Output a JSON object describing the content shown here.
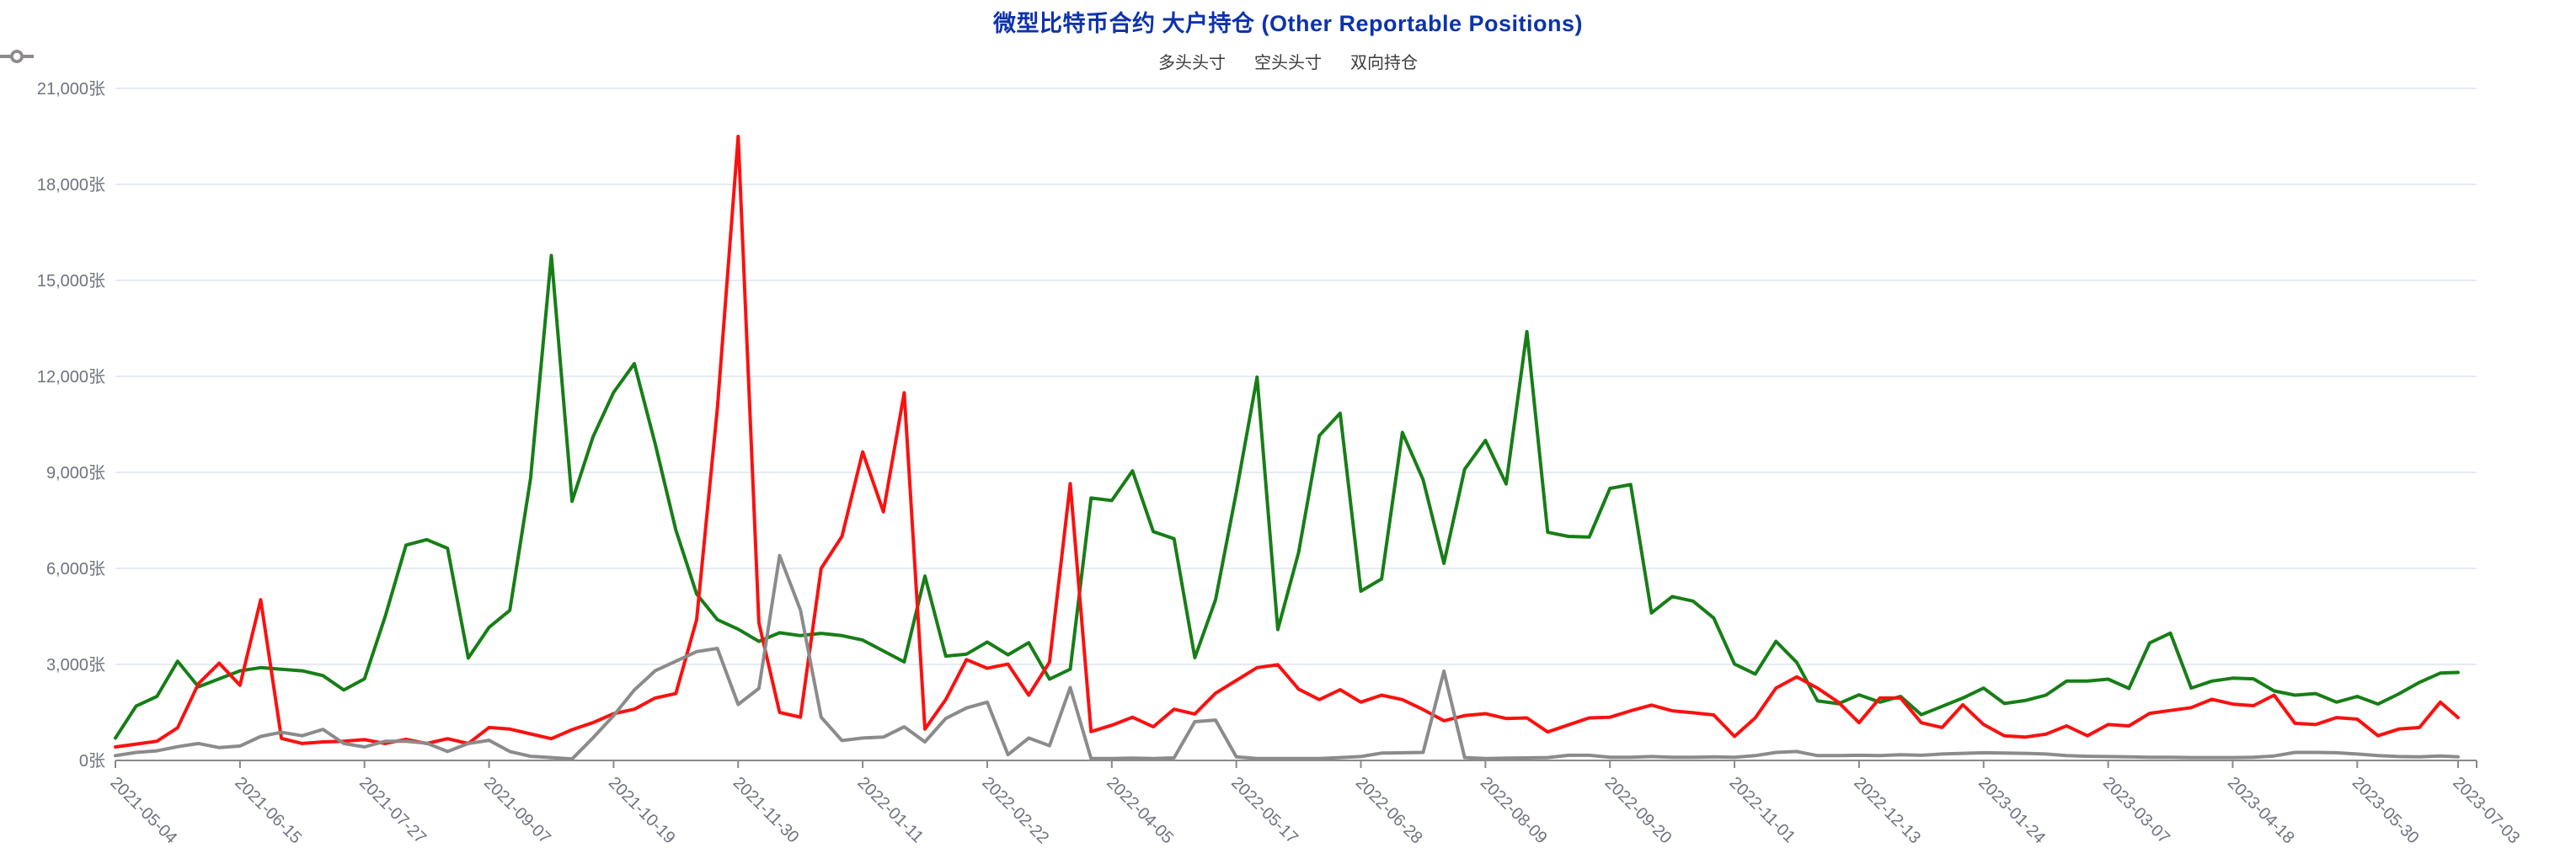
{
  "header": {
    "title": "微型比特币合约 大户持仓 (Other Reportable Positions)",
    "title_color": "#0d33ab"
  },
  "chart_data": {
    "type": "line",
    "title": "微型比特币合约 大户持仓 (Other Reportable Positions)",
    "unit": "张",
    "grid": true,
    "legend_position": "top",
    "ylim": [
      0,
      21000
    ],
    "ytick_step": 3000,
    "y_tick_labels": [
      "0张",
      "3,000张",
      "6,000张",
      "9,000张",
      "12,000张",
      "15,000张",
      "18,000张",
      "21,000张"
    ],
    "x_tick_indices": [
      0,
      6,
      12,
      18,
      24,
      30,
      36,
      42,
      48,
      54,
      60,
      66,
      72,
      78,
      84,
      90,
      96,
      102,
      108,
      113
    ],
    "x": [
      "2021-05-04",
      "2021-05-11",
      "2021-05-18",
      "2021-05-25",
      "2021-06-01",
      "2021-06-08",
      "2021-06-15",
      "2021-06-22",
      "2021-06-29",
      "2021-07-06",
      "2021-07-13",
      "2021-07-20",
      "2021-07-27",
      "2021-08-03",
      "2021-08-10",
      "2021-08-17",
      "2021-08-24",
      "2021-08-31",
      "2021-09-07",
      "2021-09-14",
      "2021-09-21",
      "2021-09-28",
      "2021-10-05",
      "2021-10-12",
      "2021-10-19",
      "2021-10-26",
      "2021-11-02",
      "2021-11-09",
      "2021-11-16",
      "2021-11-23",
      "2021-11-30",
      "2021-12-07",
      "2021-12-14",
      "2021-12-21",
      "2021-12-28",
      "2022-01-04",
      "2022-01-11",
      "2022-01-18",
      "2022-01-25",
      "2022-02-01",
      "2022-02-08",
      "2022-02-15",
      "2022-02-22",
      "2022-03-01",
      "2022-03-08",
      "2022-03-15",
      "2022-03-22",
      "2022-03-29",
      "2022-04-05",
      "2022-04-12",
      "2022-04-19",
      "2022-04-26",
      "2022-05-03",
      "2022-05-10",
      "2022-05-17",
      "2022-05-24",
      "2022-05-31",
      "2022-06-07",
      "2022-06-14",
      "2022-06-21",
      "2022-06-28",
      "2022-07-05",
      "2022-07-12",
      "2022-07-19",
      "2022-07-26",
      "2022-08-02",
      "2022-08-09",
      "2022-08-16",
      "2022-08-23",
      "2022-08-30",
      "2022-09-06",
      "2022-09-13",
      "2022-09-20",
      "2022-09-27",
      "2022-10-04",
      "2022-10-11",
      "2022-10-18",
      "2022-10-25",
      "2022-11-01",
      "2022-11-08",
      "2022-11-15",
      "2022-11-22",
      "2022-11-29",
      "2022-12-06",
      "2022-12-13",
      "2022-12-20",
      "2022-12-27",
      "2023-01-03",
      "2023-01-10",
      "2023-01-17",
      "2023-01-24",
      "2023-01-31",
      "2023-02-07",
      "2023-02-14",
      "2023-02-21",
      "2023-02-28",
      "2023-03-07",
      "2023-03-14",
      "2023-03-21",
      "2023-03-28",
      "2023-04-04",
      "2023-04-11",
      "2023-04-18",
      "2023-04-25",
      "2023-05-02",
      "2023-05-09",
      "2023-05-16",
      "2023-05-23",
      "2023-05-30",
      "2023-06-06",
      "2023-06-13",
      "2023-06-20",
      "2023-06-27",
      "2023-07-03"
    ],
    "series": [
      {
        "name": "多头头寸",
        "color": "#177e17",
        "values": [
          700,
          1700,
          2000,
          3100,
          2300,
          2550,
          2800,
          2900,
          2850,
          2800,
          2650,
          2200,
          2550,
          4500,
          6730,
          6900,
          6630,
          3200,
          4160,
          4690,
          8800,
          15780,
          8100,
          10100,
          11500,
          12400,
          9900,
          7200,
          5200,
          4400,
          4100,
          3720,
          3990,
          3900,
          3970,
          3900,
          3760,
          3420,
          3080,
          5760,
          3260,
          3320,
          3700,
          3300,
          3680,
          2540,
          2850,
          8200,
          8120,
          9050,
          7150,
          6930,
          3210,
          5020,
          8390,
          11980,
          4090,
          6500,
          10150,
          10850,
          5290,
          5670,
          10250,
          8770,
          6160,
          9100,
          10000,
          8640,
          13400,
          7130,
          7000,
          6980,
          8500,
          8620,
          4610,
          5120,
          4980,
          4450,
          3010,
          2700,
          3720,
          3060,
          1860,
          1770,
          2050,
          1820,
          2000,
          1430,
          1690,
          1950,
          2260,
          1780,
          1870,
          2040,
          2480,
          2480,
          2540,
          2250,
          3670,
          3980,
          2260,
          2480,
          2570,
          2550,
          2170,
          2040,
          2090,
          1820,
          2000,
          1760,
          2080,
          2440,
          2730,
          2750
        ]
      },
      {
        "name": "空头头寸",
        "color": "#fa1110",
        "values": [
          420,
          510,
          600,
          1020,
          2400,
          3040,
          2350,
          5020,
          690,
          530,
          580,
          600,
          650,
          530,
          660,
          530,
          680,
          530,
          1030,
          980,
          830,
          680,
          960,
          1180,
          1460,
          1600,
          1950,
          2090,
          4400,
          11000,
          19500,
          4300,
          1500,
          1350,
          6000,
          7000,
          9640,
          7770,
          11490,
          980,
          1900,
          3150,
          2880,
          3010,
          2040,
          3070,
          8650,
          900,
          1100,
          1350,
          1050,
          1600,
          1450,
          2100,
          2500,
          2900,
          2990,
          2230,
          1900,
          2210,
          1820,
          2040,
          1900,
          1590,
          1240,
          1400,
          1460,
          1310,
          1330,
          890,
          1110,
          1330,
          1350,
          1550,
          1730,
          1550,
          1490,
          1420,
          750,
          1330,
          2260,
          2610,
          2260,
          1820,
          1180,
          1950,
          1950,
          1180,
          1030,
          1740,
          1120,
          770,
          730,
          820,
          1080,
          770,
          1120,
          1080,
          1470,
          1560,
          1650,
          1910,
          1760,
          1710,
          2040,
          1160,
          1120,
          1340,
          1290,
          770,
          980,
          1030,
          1820,
          1340
        ]
      },
      {
        "name": "双向持仓",
        "color": "#8b8b8b",
        "values": [
          150,
          250,
          300,
          430,
          530,
          400,
          450,
          750,
          880,
          770,
          970,
          530,
          420,
          600,
          600,
          540,
          280,
          530,
          630,
          280,
          130,
          90,
          45,
          700,
          1400,
          2200,
          2800,
          3100,
          3400,
          3500,
          1750,
          2250,
          6400,
          4700,
          1350,
          620,
          700,
          730,
          1050,
          580,
          1310,
          1640,
          1820,
          180,
          700,
          460,
          2280,
          60,
          60,
          70,
          60,
          80,
          1210,
          1260,
          110,
          60,
          60,
          60,
          60,
          90,
          120,
          230,
          240,
          250,
          2790,
          90,
          60,
          70,
          80,
          90,
          160,
          160,
          100,
          100,
          120,
          100,
          100,
          110,
          100,
          150,
          250,
          280,
          150,
          150,
          160,
          150,
          180,
          160,
          200,
          220,
          240,
          230,
          220,
          200,
          150,
          130,
          120,
          110,
          100,
          100,
          90,
          90,
          90,
          100,
          140,
          250,
          250,
          240,
          200,
          150,
          120,
          110,
          140,
          110
        ]
      }
    ],
    "colors": {
      "grid": "#dfe4f0",
      "axis": "#898989",
      "tick_label": "#6e7380",
      "legend_label": "#3c3c3c"
    }
  }
}
